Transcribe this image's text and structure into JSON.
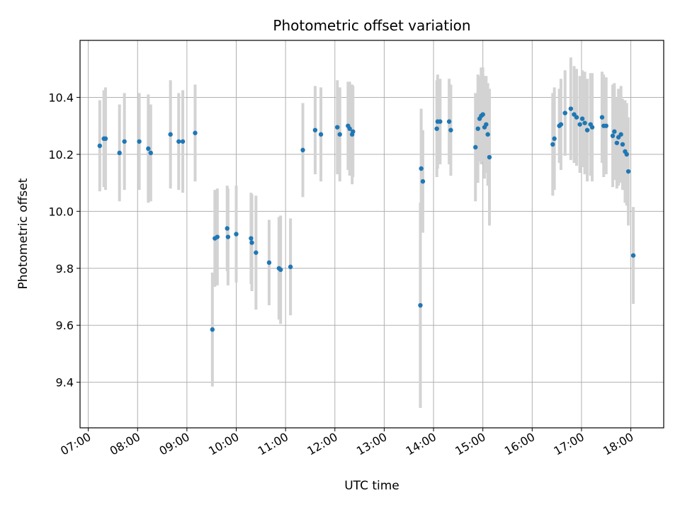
{
  "chart_data": {
    "type": "scatter",
    "title": "Photometric offset variation",
    "xlabel": "UTC time",
    "ylabel": "Photometric offset",
    "xlim": [
      "06:50",
      "18:40"
    ],
    "ylim": [
      9.24,
      10.6
    ],
    "grid": true,
    "x_ticks": [
      "07:00",
      "08:00",
      "09:00",
      "10:00",
      "11:00",
      "12:00",
      "13:00",
      "14:00",
      "15:00",
      "16:00",
      "17:00",
      "18:00"
    ],
    "y_ticks": [
      "9.4",
      "9.6",
      "9.8",
      "10.0",
      "10.2",
      "10.4"
    ],
    "point_color": "#1f77b4",
    "errorbar_color": "#d3d3d3",
    "series": [
      {
        "x": [
          "07:14",
          "07:19",
          "07:21",
          "07:38",
          "07:44",
          "08:02",
          "08:13",
          "08:16",
          "08:40",
          "08:50",
          "08:55",
          "09:10",
          "09:31",
          "09:34",
          "09:37",
          "09:49",
          "09:50",
          "10:00",
          "10:18",
          "10:19",
          "10:24",
          "10:40",
          "10:52",
          "10:54",
          "11:06",
          "11:21",
          "11:36",
          "11:43",
          "12:03",
          "12:06",
          "12:16",
          "12:18",
          "12:21",
          "12:22",
          "13:44",
          "13:45",
          "13:47",
          "14:04",
          "14:05",
          "14:08",
          "14:19",
          "14:21",
          "14:51",
          "14:54",
          "14:56",
          "14:58",
          "15:00",
          "15:02",
          "15:04",
          "15:06",
          "15:08",
          "16:25",
          "16:27",
          "16:33",
          "16:35",
          "16:40",
          "16:47",
          "16:51",
          "16:54",
          "16:58",
          "17:01",
          "17:04",
          "17:07",
          "17:11",
          "17:13",
          "17:25",
          "17:27",
          "17:30",
          "17:38",
          "17:40",
          "17:43",
          "17:45",
          "17:48",
          "17:50",
          "17:53",
          "17:55",
          "17:57",
          "18:03"
        ],
        "y": [
          10.23,
          10.255,
          10.255,
          10.205,
          10.245,
          10.245,
          10.22,
          10.205,
          10.27,
          10.245,
          10.245,
          10.275,
          9.585,
          9.905,
          9.91,
          9.94,
          9.91,
          9.92,
          9.905,
          9.89,
          9.855,
          9.82,
          9.8,
          9.795,
          9.805,
          10.215,
          10.285,
          10.27,
          10.295,
          10.27,
          10.3,
          10.29,
          10.27,
          10.28,
          9.67,
          10.15,
          10.105,
          10.29,
          10.315,
          10.315,
          10.315,
          10.285,
          10.225,
          10.29,
          10.325,
          10.335,
          10.34,
          10.295,
          10.305,
          10.27,
          10.19,
          10.235,
          10.255,
          10.3,
          10.305,
          10.345,
          10.36,
          10.34,
          10.33,
          10.305,
          10.325,
          10.31,
          10.285,
          10.305,
          10.295,
          10.33,
          10.3,
          10.3,
          10.265,
          10.28,
          10.24,
          10.26,
          10.27,
          10.235,
          10.21,
          10.2,
          10.14,
          9.845
        ],
        "err": [
          0.16,
          0.17,
          0.18,
          0.17,
          0.17,
          0.17,
          0.19,
          0.17,
          0.19,
          0.17,
          0.18,
          0.17,
          0.2,
          0.17,
          0.17,
          0.15,
          0.17,
          0.17,
          0.16,
          0.17,
          0.2,
          0.15,
          0.18,
          0.19,
          0.17,
          0.165,
          0.155,
          0.165,
          0.165,
          0.165,
          0.155,
          0.165,
          0.175,
          0.16,
          0.36,
          0.21,
          0.18,
          0.17,
          0.165,
          0.15,
          0.15,
          0.16,
          0.19,
          0.19,
          0.15,
          0.17,
          0.165,
          0.18,
          0.17,
          0.18,
          0.24,
          0.18,
          0.18,
          0.13,
          0.16,
          0.15,
          0.18,
          0.17,
          0.17,
          0.17,
          0.17,
          0.18,
          0.18,
          0.18,
          0.19,
          0.16,
          0.18,
          0.17,
          0.18,
          0.17,
          0.16,
          0.17,
          0.17,
          0.16,
          0.18,
          0.18,
          0.19,
          0.17
        ]
      }
    ]
  }
}
